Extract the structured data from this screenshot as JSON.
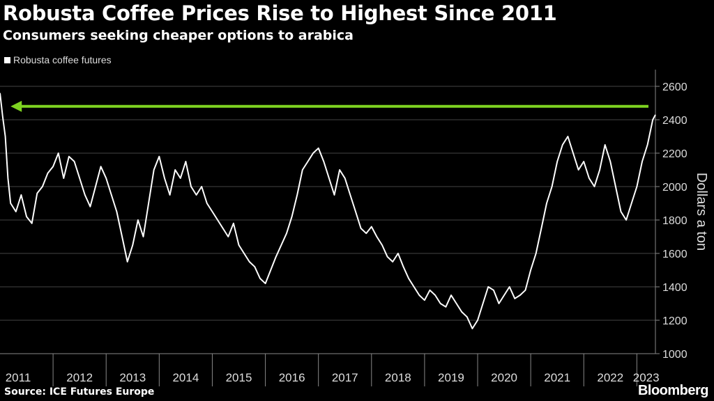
{
  "title": "Robusta Coffee Prices Rise to Highest Since 2011",
  "subtitle": "Consumers seeking cheaper options to arabica",
  "legend": "Robusta coffee futures",
  "source": "Source: ICE Futures Europe",
  "logo": "Bloomberg",
  "colors": {
    "line": "#ffffff",
    "arrow": "#7ed321",
    "grid": "#444444",
    "axis": "#888888"
  },
  "chart_data": {
    "type": "line",
    "ylabel": "Dollars a ton",
    "ylim": [
      1000,
      2700
    ],
    "yticks": [
      1000,
      1200,
      1400,
      1600,
      1800,
      2000,
      2200,
      2400,
      2600
    ],
    "xticks": [
      "2011",
      "2012",
      "2013",
      "2014",
      "2015",
      "2016",
      "2017",
      "2018",
      "2019",
      "2020",
      "2021",
      "2022",
      "2023"
    ],
    "x_start": 2011.0,
    "x_end": 2023.35,
    "series": [
      {
        "name": "Robusta coffee futures",
        "points": [
          [
            2011.0,
            2560
          ],
          [
            2011.05,
            2420
          ],
          [
            2011.1,
            2300
          ],
          [
            2011.15,
            2050
          ],
          [
            2011.2,
            1900
          ],
          [
            2011.3,
            1850
          ],
          [
            2011.4,
            1950
          ],
          [
            2011.5,
            1820
          ],
          [
            2011.6,
            1780
          ],
          [
            2011.7,
            1960
          ],
          [
            2011.8,
            2000
          ],
          [
            2011.9,
            2080
          ],
          [
            2012.0,
            2120
          ],
          [
            2012.1,
            2200
          ],
          [
            2012.2,
            2050
          ],
          [
            2012.3,
            2180
          ],
          [
            2012.4,
            2150
          ],
          [
            2012.5,
            2050
          ],
          [
            2012.6,
            1950
          ],
          [
            2012.7,
            1880
          ],
          [
            2012.8,
            2000
          ],
          [
            2012.9,
            2120
          ],
          [
            2013.0,
            2050
          ],
          [
            2013.1,
            1950
          ],
          [
            2013.2,
            1850
          ],
          [
            2013.3,
            1700
          ],
          [
            2013.4,
            1550
          ],
          [
            2013.5,
            1650
          ],
          [
            2013.6,
            1800
          ],
          [
            2013.7,
            1700
          ],
          [
            2013.8,
            1900
          ],
          [
            2013.9,
            2100
          ],
          [
            2014.0,
            2180
          ],
          [
            2014.1,
            2050
          ],
          [
            2014.2,
            1950
          ],
          [
            2014.3,
            2100
          ],
          [
            2014.4,
            2050
          ],
          [
            2014.5,
            2150
          ],
          [
            2014.6,
            2000
          ],
          [
            2014.7,
            1950
          ],
          [
            2014.8,
            2000
          ],
          [
            2014.9,
            1900
          ],
          [
            2015.0,
            1850
          ],
          [
            2015.1,
            1800
          ],
          [
            2015.2,
            1750
          ],
          [
            2015.3,
            1700
          ],
          [
            2015.4,
            1780
          ],
          [
            2015.5,
            1650
          ],
          [
            2015.6,
            1600
          ],
          [
            2015.7,
            1550
          ],
          [
            2015.8,
            1520
          ],
          [
            2015.9,
            1450
          ],
          [
            2016.0,
            1420
          ],
          [
            2016.1,
            1500
          ],
          [
            2016.2,
            1580
          ],
          [
            2016.3,
            1650
          ],
          [
            2016.4,
            1720
          ],
          [
            2016.5,
            1820
          ],
          [
            2016.6,
            1950
          ],
          [
            2016.7,
            2100
          ],
          [
            2016.8,
            2150
          ],
          [
            2016.9,
            2200
          ],
          [
            2017.0,
            2230
          ],
          [
            2017.1,
            2150
          ],
          [
            2017.2,
            2050
          ],
          [
            2017.3,
            1950
          ],
          [
            2017.4,
            2100
          ],
          [
            2017.5,
            2050
          ],
          [
            2017.6,
            1950
          ],
          [
            2017.7,
            1850
          ],
          [
            2017.8,
            1750
          ],
          [
            2017.9,
            1720
          ],
          [
            2018.0,
            1760
          ],
          [
            2018.1,
            1700
          ],
          [
            2018.2,
            1650
          ],
          [
            2018.3,
            1580
          ],
          [
            2018.4,
            1550
          ],
          [
            2018.5,
            1600
          ],
          [
            2018.6,
            1520
          ],
          [
            2018.7,
            1450
          ],
          [
            2018.8,
            1400
          ],
          [
            2018.9,
            1350
          ],
          [
            2019.0,
            1320
          ],
          [
            2019.1,
            1380
          ],
          [
            2019.2,
            1350
          ],
          [
            2019.3,
            1300
          ],
          [
            2019.4,
            1280
          ],
          [
            2019.5,
            1350
          ],
          [
            2019.6,
            1300
          ],
          [
            2019.7,
            1250
          ],
          [
            2019.8,
            1220
          ],
          [
            2019.9,
            1150
          ],
          [
            2020.0,
            1200
          ],
          [
            2020.1,
            1300
          ],
          [
            2020.2,
            1400
          ],
          [
            2020.3,
            1380
          ],
          [
            2020.4,
            1300
          ],
          [
            2020.5,
            1350
          ],
          [
            2020.6,
            1400
          ],
          [
            2020.7,
            1330
          ],
          [
            2020.8,
            1350
          ],
          [
            2020.9,
            1380
          ],
          [
            2021.0,
            1500
          ],
          [
            2021.1,
            1600
          ],
          [
            2021.2,
            1750
          ],
          [
            2021.3,
            1900
          ],
          [
            2021.4,
            2000
          ],
          [
            2021.5,
            2150
          ],
          [
            2021.6,
            2250
          ],
          [
            2021.7,
            2300
          ],
          [
            2021.8,
            2200
          ],
          [
            2021.9,
            2100
          ],
          [
            2022.0,
            2150
          ],
          [
            2022.1,
            2050
          ],
          [
            2022.2,
            2000
          ],
          [
            2022.3,
            2100
          ],
          [
            2022.4,
            2250
          ],
          [
            2022.5,
            2150
          ],
          [
            2022.6,
            2000
          ],
          [
            2022.7,
            1850
          ],
          [
            2022.8,
            1800
          ],
          [
            2022.9,
            1900
          ],
          [
            2023.0,
            2000
          ],
          [
            2023.1,
            2150
          ],
          [
            2023.2,
            2250
          ],
          [
            2023.3,
            2400
          ],
          [
            2023.35,
            2430
          ]
        ]
      }
    ],
    "annotation": {
      "type": "arrow",
      "from_x": 2023.35,
      "to_x": 2011.2,
      "y": 2480
    }
  }
}
